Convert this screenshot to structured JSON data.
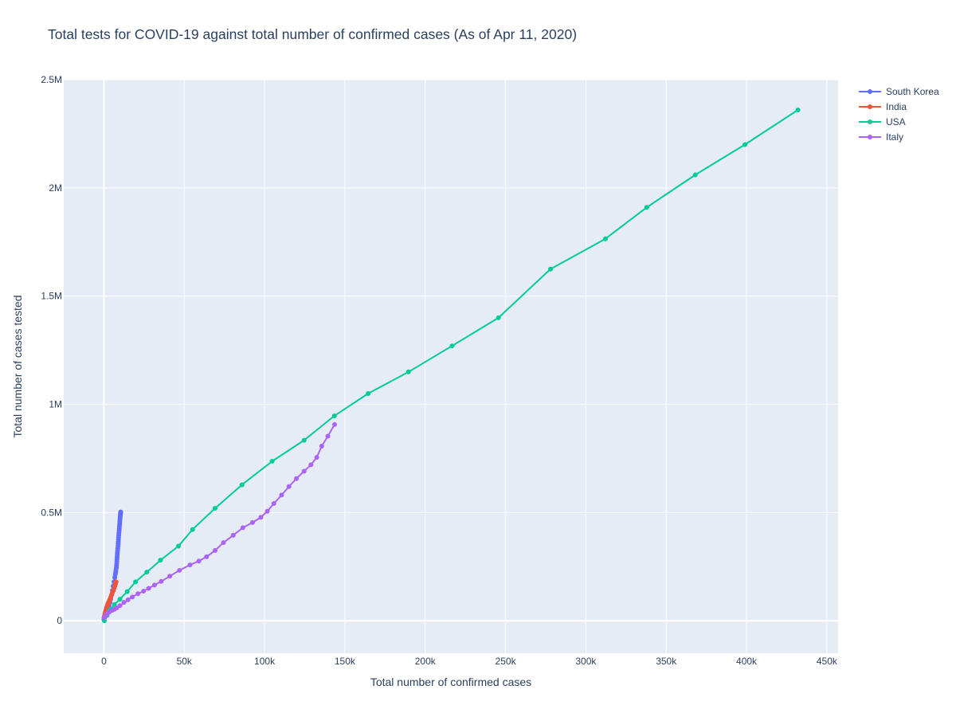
{
  "chart_data": {
    "type": "line",
    "title": "Total tests for COVID-19 against total number of confirmed cases (As of Apr 11, 2020)",
    "xlabel": "Total number of confirmed cases",
    "ylabel": "Total number of cases tested",
    "xlim": [
      -25000,
      457000
    ],
    "ylim": [
      -150000,
      2500000
    ],
    "x_ticks": [
      0,
      50000,
      100000,
      150000,
      200000,
      250000,
      300000,
      350000,
      400000,
      450000
    ],
    "x_tick_labels": [
      "0",
      "50k",
      "100k",
      "150k",
      "200k",
      "250k",
      "300k",
      "350k",
      "400k",
      "450k"
    ],
    "y_ticks": [
      0,
      500000,
      1000000,
      1500000,
      2000000,
      2500000
    ],
    "y_tick_labels": [
      "0",
      "0.5M",
      "1M",
      "1.5M",
      "2M",
      "2.5M"
    ],
    "grid": true,
    "legend_position": "top-right",
    "colors": {
      "plot_background": "#e5ecf6",
      "grid": "#ffffff",
      "text": "#2a3f5f"
    },
    "series": [
      {
        "name": "South Korea",
        "color": "#636efa",
        "x": [
          30,
          204,
          433,
          602,
          833,
          977,
          1261,
          1766,
          2337,
          3150,
          3736,
          4212,
          4812,
          5328,
          5766,
          6284,
          6767,
          7134,
          7382,
          7513,
          7755,
          7869,
          7979,
          8086,
          8162,
          8236,
          8320,
          8413,
          8565,
          8652,
          8799,
          8897,
          8961,
          9037,
          9137,
          9241,
          9332,
          9478,
          9583,
          9661,
          9786,
          9887,
          9976,
          10062,
          10156,
          10237,
          10284,
          10331,
          10384,
          10423,
          10450
        ],
        "y": [
          5000,
          10000,
          15000,
          20000,
          25000,
          30000,
          40000,
          50000,
          60000,
          70000,
          85000,
          100000,
          120000,
          140000,
          160000,
          180000,
          200000,
          215000,
          225000,
          235000,
          245000,
          255000,
          265000,
          275000,
          285000,
          295000,
          305000,
          315000,
          325000,
          335000,
          345000,
          355000,
          365000,
          375000,
          385000,
          395000,
          405000,
          415000,
          425000,
          435000,
          445000,
          455000,
          465000,
          475000,
          482000,
          488000,
          492000,
          495000,
          498000,
          500000,
          503000
        ]
      },
      {
        "name": "India",
        "color": "#ef553b",
        "x": [
          100,
          300,
          500,
          700,
          900,
          1100,
          1300,
          1500,
          1700,
          2000,
          2300,
          2600,
          3000,
          3400,
          3800,
          4300,
          4800,
          5300,
          5900,
          6400,
          6800,
          7200,
          7600
        ],
        "y": [
          15000,
          20000,
          26000,
          32000,
          38000,
          44000,
          50000,
          56000,
          62000,
          68000,
          74000,
          80000,
          86000,
          93000,
          100000,
          110000,
          120000,
          130000,
          140000,
          150000,
          160000,
          170000,
          180000
        ]
      },
      {
        "name": "USA",
        "color": "#00cc96",
        "x": [
          300,
          2000,
          3500,
          6500,
          10000,
          14500,
          19700,
          26700,
          35200,
          46400,
          55200,
          69200,
          85900,
          104700,
          124600,
          143500,
          164500,
          189600,
          216700,
          245600,
          278000,
          312200,
          337900,
          368100,
          399000,
          432000
        ],
        "y": [
          0,
          25000,
          50000,
          75000,
          100000,
          135000,
          180000,
          225000,
          280000,
          345000,
          422000,
          520000,
          628000,
          737000,
          834000,
          947000,
          1050000,
          1150000,
          1270000,
          1400000,
          1625000,
          1765000,
          1910000,
          2060000,
          2200000,
          2360000
        ]
      },
      {
        "name": "Italy",
        "color": "#ab63fa",
        "x": [
          300,
          800,
          1500,
          2500,
          3500,
          5000,
          6500,
          8000,
          10000,
          12500,
          15000,
          17700,
          21200,
          24700,
          27900,
          31500,
          35700,
          41000,
          47000,
          53600,
          59100,
          63900,
          69200,
          74400,
          80500,
          86500,
          92500,
          97700,
          101700,
          105800,
          110600,
          115200,
          119800,
          124600,
          128900,
          132500,
          135600,
          139400,
          143600
        ],
        "y": [
          15000,
          20000,
          28000,
          35000,
          42000,
          48000,
          53000,
          60000,
          70000,
          85000,
          97000,
          110000,
          125000,
          137000,
          150000,
          165000,
          182000,
          206000,
          233000,
          258000,
          276000,
          296000,
          325000,
          361000,
          395000,
          430000,
          454000,
          478000,
          506000,
          542000,
          581000,
          620000,
          657000,
          691000,
          721000,
          755000,
          807000,
          853000,
          907000
        ]
      }
    ]
  }
}
